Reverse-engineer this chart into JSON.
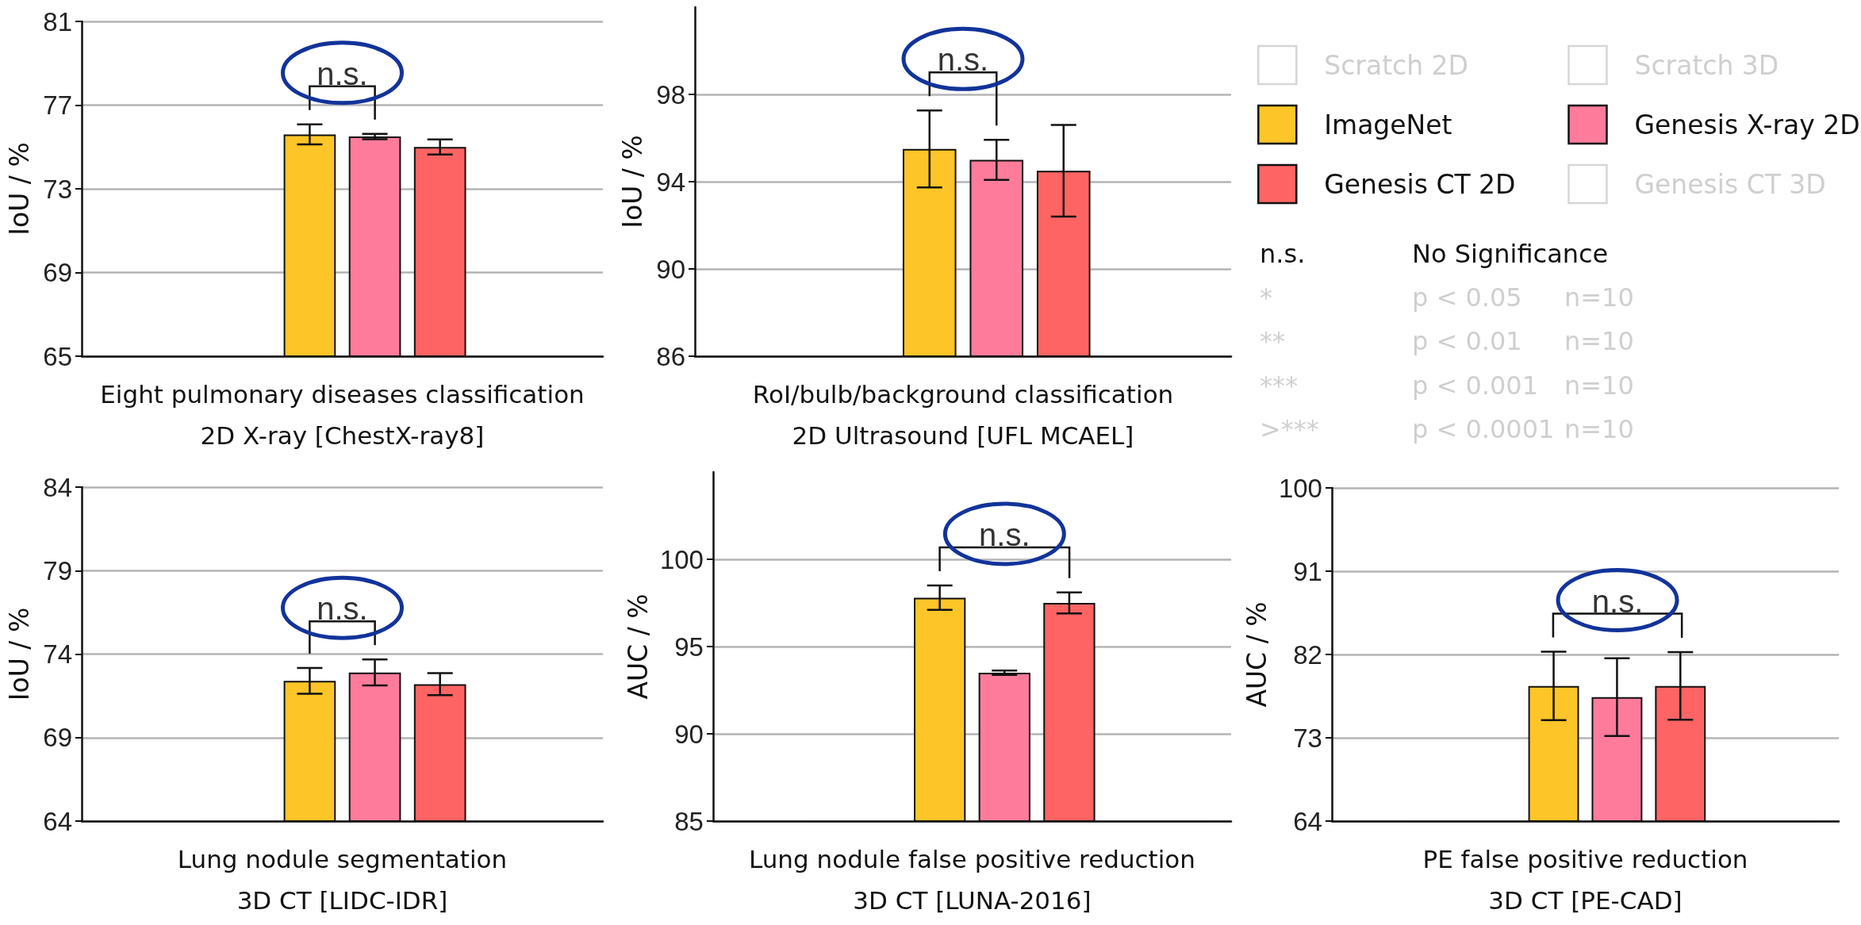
{
  "chart_data": [
    {
      "type": "bar",
      "xlabel": "Eight pulmonary diseases classification\n2D X-ray [ChestX-ray8]",
      "ylabel": "IoU / %",
      "categories": [
        null
      ],
      "ylim": [
        65,
        81
      ],
      "yticks": [
        65,
        69,
        73,
        77,
        81
      ],
      "grid": "y",
      "annotations": [
        "n.s."
      ],
      "series": [
        {
          "values": [
            null
          ]
        },
        {
          "values": [
            null
          ]
        },
        {
          "color": "#fdc527",
          "values": [
            75.6
          ],
          "errors": [
            0.48
          ]
        },
        {
          "color": "#ff7b9c",
          "values": [
            75.5
          ],
          "errors": [
            0.13
          ]
        },
        {
          "color": "#ff6464",
          "values": [
            75.0
          ],
          "errors": [
            0.36
          ]
        },
        {
          "values": [
            null
          ]
        }
      ]
    },
    {
      "type": "bar",
      "xlabel": "RoI/bulb/background classification\n2D Ultrasound [UFL MCAEL]",
      "ylabel": "IoU / %",
      "categories": [
        null
      ],
      "ylim": [
        86,
        102
      ],
      "yticks": [
        86,
        90,
        94,
        98
      ],
      "grid": "y",
      "legend": "right",
      "annotations": [
        "n.s."
      ],
      "series": [
        {
          "name": "Scratch 2D",
          "values": [
            null
          ]
        },
        {
          "name": "Scratch 3D",
          "values": [
            null
          ]
        },
        {
          "name": "ImageNet",
          "color": "#fdc527",
          "values": [
            95.5
          ],
          "errors": [
            1.76
          ]
        },
        {
          "name": "Genesis X-ray 2D",
          "color": "#ff7b9c",
          "values": [
            95.0
          ],
          "errors": [
            0.92
          ]
        },
        {
          "name": "Genesis CT 2D",
          "color": "#ff6464",
          "values": [
            94.5
          ],
          "errors": [
            2.1
          ]
        },
        {
          "name": "Genesis CT 3D",
          "values": [
            null
          ]
        }
      ]
    },
    {
      "type": "other",
      "annotations": [
        "n.s.",
        "No Significance",
        "*",
        "p < 0.05",
        "n=10",
        "**",
        "p < 0.01",
        "n=10",
        "***",
        "p < 0.001",
        "n=10",
        ">***",
        "p < 0.0001",
        "n=10"
      ]
    },
    {
      "type": "bar",
      "xlabel": "Lung nodule segmentation\n3D CT [LIDC-IDR]",
      "ylabel": "IoU / %",
      "categories": [
        null
      ],
      "ylim": [
        64,
        84
      ],
      "yticks": [
        64,
        69,
        74,
        79,
        84
      ],
      "grid": "y",
      "annotations": [
        "n.s."
      ],
      "series": [
        {
          "values": [
            null
          ]
        },
        {
          "values": [
            null
          ]
        },
        {
          "color": "#fdc527",
          "values": [
            72.4
          ],
          "errors": [
            0.77
          ]
        },
        {
          "color": "#ff7b9c",
          "values": [
            72.9
          ],
          "errors": [
            0.78
          ]
        },
        {
          "color": "#ff6464",
          "values": [
            72.2
          ],
          "errors": [
            0.66
          ]
        },
        {
          "values": [
            null
          ]
        }
      ]
    },
    {
      "type": "bar",
      "xlabel": "Lung nodule false positive reduction\n3D CT [LUNA-2016]",
      "ylabel": "AUC / %",
      "categories": [
        null
      ],
      "ylim": [
        85,
        105
      ],
      "yticks": [
        85,
        90,
        95,
        100
      ],
      "grid": "y",
      "annotations": [
        "n.s."
      ],
      "series": [
        {
          "values": [
            null
          ]
        },
        {
          "values": [
            null
          ]
        },
        {
          "color": "#fdc527",
          "values": [
            97.8
          ],
          "errors": [
            0.7
          ]
        },
        {
          "color": "#ff7b9c",
          "values": [
            93.5
          ],
          "errors": [
            0.13
          ]
        },
        {
          "color": "#ff6464",
          "values": [
            97.5
          ],
          "errors": [
            0.6
          ]
        },
        {
          "values": [
            null
          ]
        }
      ]
    },
    {
      "type": "bar",
      "xlabel": "PE false positive reduction\n3D CT [PE-CAD]",
      "ylabel": "AUC / %",
      "categories": [
        null
      ],
      "ylim": [
        64,
        100
      ],
      "yticks": [
        64,
        73,
        82,
        91,
        100
      ],
      "grid": "y",
      "annotations": [
        "n.s."
      ],
      "series": [
        {
          "values": [
            null
          ]
        },
        {
          "values": [
            null
          ]
        },
        {
          "color": "#fdc527",
          "values": [
            78.6
          ],
          "errors": [
            3.7
          ]
        },
        {
          "color": "#ff7b9c",
          "values": [
            77.4
          ],
          "errors": [
            4.2
          ]
        },
        {
          "color": "#ff6464",
          "values": [
            78.6
          ],
          "errors": [
            3.65
          ]
        },
        {
          "values": [
            null
          ]
        }
      ]
    }
  ]
}
